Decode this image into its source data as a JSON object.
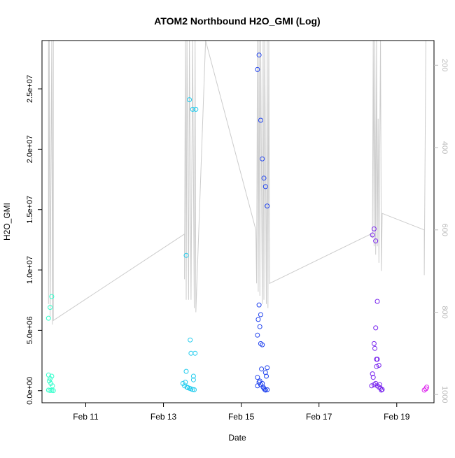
{
  "chart_data": {
    "type": "scatter",
    "title": "ATOM2 Northbound H2O_GMI (Log)",
    "xlabel": "Date",
    "ylabel": "H2O_GMI",
    "x_axis": {
      "type": "date",
      "range": [
        "2017-02-09T21:00",
        "2017-02-19T23:00"
      ],
      "ticks": [
        {
          "value": "2017-02-11",
          "label": "Feb 11"
        },
        {
          "value": "2017-02-13",
          "label": "Feb 13"
        },
        {
          "value": "2017-02-15",
          "label": "Feb 15"
        },
        {
          "value": "2017-02-17",
          "label": "Feb 17"
        },
        {
          "value": "2017-02-19",
          "label": "Feb 19"
        }
      ]
    },
    "y_axis": {
      "range": [
        -1000000,
        29000000
      ],
      "ticks": [
        {
          "value": 0,
          "label": "0.0e+00"
        },
        {
          "value": 5000000,
          "label": "5.0e+06"
        },
        {
          "value": 10000000,
          "label": "1.0e+07"
        },
        {
          "value": 15000000,
          "label": "1.5e+07"
        },
        {
          "value": 20000000,
          "label": "2.0e+07"
        },
        {
          "value": 25000000,
          "label": "2.5e+07"
        }
      ]
    },
    "y2_axis": {
      "side": "right",
      "reversed": true,
      "range": [
        1020,
        140
      ],
      "ticks": [
        {
          "value": 200,
          "label": "200"
        },
        {
          "value": 400,
          "label": "400"
        },
        {
          "value": 600,
          "label": "600"
        },
        {
          "value": 800,
          "label": "800"
        },
        {
          "value": 1000,
          "label": "1000"
        }
      ],
      "color": "#bbbbbb"
    },
    "grid": false,
    "legend": "none",
    "series": [
      {
        "color": "#33ffcc",
        "points": [
          [
            "2017-02-10T01:00",
            6000000
          ],
          [
            "2017-02-10T02:00",
            6900000
          ],
          [
            "2017-02-10T03:00",
            7800000
          ],
          [
            "2017-02-10T01:00",
            1300000
          ],
          [
            "2017-02-10T02:00",
            1000000
          ],
          [
            "2017-02-10T03:00",
            1200000
          ],
          [
            "2017-02-10T01:30",
            800000
          ],
          [
            "2017-02-10T02:30",
            600000
          ],
          [
            "2017-02-10T03:30",
            400000
          ],
          [
            "2017-02-10T01:00",
            50000
          ],
          [
            "2017-02-10T02:00",
            20000
          ],
          [
            "2017-02-10T03:00",
            30000
          ],
          [
            "2017-02-10T04:00",
            10000
          ]
        ]
      },
      {
        "color": "#22ccee",
        "points": [
          [
            "2017-02-13T14:00",
            11200000
          ],
          [
            "2017-02-13T16:00",
            24100000
          ],
          [
            "2017-02-13T18:00",
            23300000
          ],
          [
            "2017-02-13T20:00",
            23300000
          ],
          [
            "2017-02-13T16:30",
            4200000
          ],
          [
            "2017-02-13T17:00",
            3100000
          ],
          [
            "2017-02-13T19:30",
            3100000
          ],
          [
            "2017-02-13T14:00",
            1600000
          ],
          [
            "2017-02-13T18:30",
            1200000
          ],
          [
            "2017-02-13T12:00",
            600000
          ],
          [
            "2017-02-13T13:00",
            400000
          ],
          [
            "2017-02-13T14:30",
            300000
          ],
          [
            "2017-02-13T15:00",
            250000
          ],
          [
            "2017-02-13T16:00",
            200000
          ],
          [
            "2017-02-13T17:00",
            150000
          ],
          [
            "2017-02-13T18:00",
            100000
          ],
          [
            "2017-02-13T19:00",
            80000
          ],
          [
            "2017-02-13T13:30",
            700000
          ],
          [
            "2017-02-13T18:30",
            900000
          ]
        ]
      },
      {
        "color": "#2244ee",
        "points": [
          [
            "2017-02-15T10:00",
            26600000
          ],
          [
            "2017-02-15T11:00",
            27800000
          ],
          [
            "2017-02-15T12:00",
            22400000
          ],
          [
            "2017-02-15T13:00",
            19200000
          ],
          [
            "2017-02-15T14:00",
            17600000
          ],
          [
            "2017-02-15T15:00",
            16900000
          ],
          [
            "2017-02-15T16:00",
            15300000
          ],
          [
            "2017-02-15T11:00",
            7100000
          ],
          [
            "2017-02-15T12:00",
            6300000
          ],
          [
            "2017-02-15T10:30",
            5900000
          ],
          [
            "2017-02-15T11:30",
            5300000
          ],
          [
            "2017-02-15T10:00",
            4600000
          ],
          [
            "2017-02-15T12:00",
            3900000
          ],
          [
            "2017-02-15T13:00",
            3800000
          ],
          [
            "2017-02-15T12:30",
            1800000
          ],
          [
            "2017-02-15T16:00",
            1900000
          ],
          [
            "2017-02-15T15:00",
            1500000
          ],
          [
            "2017-02-15T15:30",
            1200000
          ],
          [
            "2017-02-15T10:00",
            1100000
          ],
          [
            "2017-02-15T11:00",
            700000
          ],
          [
            "2017-02-15T13:00",
            600000
          ],
          [
            "2017-02-15T10:00",
            400000
          ],
          [
            "2017-02-15T13:30",
            300000
          ],
          [
            "2017-02-15T14:00",
            200000
          ],
          [
            "2017-02-15T14:30",
            100000
          ],
          [
            "2017-02-15T15:00",
            50000
          ],
          [
            "2017-02-15T16:00",
            80000
          ],
          [
            "2017-02-15T12:00",
            500000
          ],
          [
            "2017-02-15T11:30",
            800000
          ]
        ]
      },
      {
        "color": "#7722ee",
        "points": [
          [
            "2017-02-18T09:00",
            12900000
          ],
          [
            "2017-02-18T10:00",
            13400000
          ],
          [
            "2017-02-18T11:00",
            12400000
          ],
          [
            "2017-02-18T12:00",
            7400000
          ],
          [
            "2017-02-18T11:00",
            5200000
          ],
          [
            "2017-02-18T10:00",
            3900000
          ],
          [
            "2017-02-18T10:30",
            3500000
          ],
          [
            "2017-02-18T11:30",
            2600000
          ],
          [
            "2017-02-18T12:00",
            2600000
          ],
          [
            "2017-02-18T11:30",
            2000000
          ],
          [
            "2017-02-18T13:00",
            2100000
          ],
          [
            "2017-02-18T09:00",
            1400000
          ],
          [
            "2017-02-18T09:30",
            1100000
          ],
          [
            "2017-02-18T08:30",
            400000
          ],
          [
            "2017-02-18T10:00",
            500000
          ],
          [
            "2017-02-18T11:00",
            600000
          ],
          [
            "2017-02-18T12:00",
            400000
          ],
          [
            "2017-02-18T13:00",
            300000
          ],
          [
            "2017-02-18T14:00",
            200000
          ],
          [
            "2017-02-18T14:30",
            50000
          ],
          [
            "2017-02-18T15:00",
            100000
          ],
          [
            "2017-02-18T13:30",
            500000
          ]
        ]
      },
      {
        "color": "#dd22ee",
        "points": [
          [
            "2017-02-19T17:00",
            50000
          ],
          [
            "2017-02-19T18:00",
            150000
          ],
          [
            "2017-02-19T18:30",
            300000
          ]
        ]
      }
    ],
    "y2_trace": {
      "color": "#cccccc",
      "points": [
        [
          "2017-02-10T01:00",
          140
        ],
        [
          "2017-02-10T01:00",
          780
        ],
        [
          "2017-02-10T01:30",
          140
        ],
        [
          "2017-02-10T02:00",
          810
        ],
        [
          "2017-02-10T03:00",
          140
        ],
        [
          "2017-02-10T03:30",
          830
        ],
        [
          "2017-02-10T04:00",
          140
        ],
        [
          "2017-02-10T04:00",
          820
        ],
        [
          "2017-02-13T13:00",
          610
        ],
        [
          "2017-02-13T13:00",
          720
        ],
        [
          "2017-02-13T13:30",
          140
        ],
        [
          "2017-02-13T14:00",
          770
        ],
        [
          "2017-02-13T14:30",
          140
        ],
        [
          "2017-02-13T15:30",
          770
        ],
        [
          "2017-02-13T16:00",
          140
        ],
        [
          "2017-02-13T17:00",
          770
        ],
        [
          "2017-02-13T18:00",
          140
        ],
        [
          "2017-02-13T19:00",
          790
        ],
        [
          "2017-02-13T19:30",
          140
        ],
        [
          "2017-02-13T20:00",
          800
        ],
        [
          "2017-02-14T02:00",
          140
        ],
        [
          "2017-02-15T09:00",
          600
        ],
        [
          "2017-02-15T09:30",
          730
        ],
        [
          "2017-02-15T10:00",
          140
        ],
        [
          "2017-02-15T10:30",
          750
        ],
        [
          "2017-02-15T11:00",
          140
        ],
        [
          "2017-02-15T11:30",
          760
        ],
        [
          "2017-02-15T12:00",
          140
        ],
        [
          "2017-02-15T13:00",
          780
        ],
        [
          "2017-02-15T13:30",
          140
        ],
        [
          "2017-02-15T14:00",
          770
        ],
        [
          "2017-02-15T14:30",
          140
        ],
        [
          "2017-02-15T15:30",
          780
        ],
        [
          "2017-02-15T16:00",
          140
        ],
        [
          "2017-02-15T16:30",
          790
        ],
        [
          "2017-02-15T17:00",
          140
        ],
        [
          "2017-02-15T17:30",
          730
        ],
        [
          "2017-02-18T08:00",
          610
        ],
        [
          "2017-02-18T09:00",
          620
        ],
        [
          "2017-02-18T09:30",
          140
        ],
        [
          "2017-02-18T10:00",
          640
        ],
        [
          "2017-02-18T10:30",
          140
        ],
        [
          "2017-02-18T11:00",
          660
        ],
        [
          "2017-02-18T11:30",
          140
        ],
        [
          "2017-02-18T12:00",
          640
        ],
        [
          "2017-02-18T12:30",
          330
        ],
        [
          "2017-02-18T13:00",
          680
        ],
        [
          "2017-02-18T14:00",
          140
        ],
        [
          "2017-02-18T14:30",
          700
        ],
        [
          "2017-02-18T15:00",
          560
        ],
        [
          "2017-02-19T17:00",
          600
        ],
        [
          "2017-02-19T17:00",
          710
        ],
        [
          "2017-02-19T18:00",
          140
        ]
      ]
    }
  }
}
